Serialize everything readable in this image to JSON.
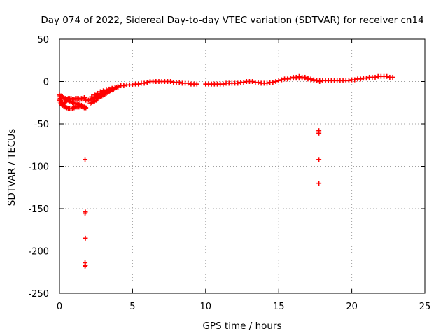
{
  "chart_data": {
    "type": "scatter",
    "title": "Day 074 of 2022, Sidereal Day-to-day VTEC variation (SDTVAR) for receiver cn14",
    "xlabel": "GPS time / hours",
    "ylabel": "SDTVAR / TECUs",
    "xlim": [
      0,
      25
    ],
    "ylim": [
      -250,
      50
    ],
    "xticks": [
      0,
      5,
      10,
      15,
      20,
      25
    ],
    "yticks": [
      -250,
      -200,
      -150,
      -100,
      -50,
      0,
      50
    ],
    "grid": true,
    "marker": "plus",
    "color": "#ff0000",
    "series": [
      {
        "name": "SDTVAR",
        "x": [
          0.0,
          0.05,
          0.1,
          0.15,
          0.2,
          0.25,
          0.3,
          0.35,
          0.4,
          0.5,
          0.55,
          0.6,
          0.7,
          0.8,
          0.9,
          1.0,
          1.1,
          1.2,
          1.3,
          1.4,
          1.5,
          1.6,
          1.7,
          0.0,
          0.05,
          0.1,
          0.15,
          0.2,
          0.3,
          0.4,
          0.5,
          0.6,
          0.7,
          0.8,
          0.9,
          1.0,
          1.1,
          1.2,
          1.3,
          1.4,
          1.5,
          1.6,
          1.7,
          1.8,
          0.0,
          0.1,
          0.2,
          0.3,
          0.4,
          0.5,
          0.6,
          0.7,
          0.8,
          0.9,
          1.0,
          1.1,
          1.2,
          1.3,
          1.4,
          1.5,
          1.6,
          1.7,
          1.8,
          1.8,
          1.9,
          2.0,
          2.1,
          2.2,
          2.3,
          2.4,
          2.5,
          2.6,
          2.7,
          2.8,
          2.9,
          3.0,
          3.1,
          3.2,
          3.3,
          3.4,
          3.5,
          2.1,
          2.2,
          2.3,
          2.4,
          2.5,
          2.6,
          2.7,
          2.8,
          2.9,
          3.0,
          3.1,
          3.2,
          3.3,
          3.4,
          3.5,
          3.6,
          3.7,
          3.8,
          3.9,
          4.0,
          2.2,
          2.4,
          2.6,
          2.8,
          3.0,
          3.2,
          3.4,
          3.6,
          3.8,
          4.0,
          4.2,
          4.4,
          4.6,
          4.8,
          5.0,
          5.2,
          5.4,
          5.6,
          5.8,
          6.0,
          6.2,
          6.4,
          6.6,
          6.8,
          7.0,
          7.2,
          7.4,
          7.6,
          7.8,
          8.0,
          8.2,
          8.4,
          8.6,
          8.8,
          9.0,
          9.2,
          9.4,
          10.0,
          10.2,
          10.4,
          10.6,
          10.8,
          11.0,
          11.2,
          11.4,
          11.6,
          11.8,
          12.0,
          12.2,
          12.4,
          12.6,
          12.8,
          13.0,
          13.2,
          13.4,
          13.6,
          13.8,
          14.0,
          14.2,
          14.4,
          14.6,
          14.8,
          15.0,
          15.2,
          15.4,
          15.6,
          15.8,
          16.0,
          16.2,
          16.4,
          16.6,
          16.8,
          17.0,
          17.2,
          17.4,
          17.6,
          17.8,
          15.8,
          16.0,
          16.2,
          16.4,
          16.6,
          16.8,
          17.0,
          17.2,
          17.4,
          17.6,
          17.8,
          18.0,
          18.2,
          18.4,
          18.6,
          18.8,
          19.0,
          19.2,
          19.4,
          19.6,
          19.8,
          20.0,
          20.2,
          20.4,
          20.6,
          20.8,
          21.0,
          21.2,
          21.4,
          21.6,
          21.8,
          22.0,
          22.2,
          22.4,
          22.6,
          22.8,
          1.75,
          1.77,
          1.75,
          1.77,
          1.75,
          1.77,
          1.75,
          17.75,
          17.75,
          17.75,
          17.75
        ],
        "y": [
          -18,
          -20,
          -22,
          -24,
          -25,
          -26,
          -26,
          -25,
          -24,
          -22,
          -21,
          -20,
          -20,
          -20,
          -21,
          -21,
          -20,
          -20,
          -20,
          -21,
          -20,
          -20,
          -19,
          -22,
          -24,
          -26,
          -27,
          -28,
          -29,
          -30,
          -31,
          -32,
          -32,
          -32,
          -32,
          -31,
          -30,
          -30,
          -30,
          -30,
          -29,
          -30,
          -31,
          -31,
          -16,
          -17,
          -18,
          -19,
          -20,
          -21,
          -22,
          -23,
          -24,
          -25,
          -26,
          -26,
          -26,
          -27,
          -27,
          -28,
          -29,
          -30,
          -31,
          -22,
          -22,
          -22,
          -21,
          -21,
          -20,
          -19,
          -18,
          -17,
          -16,
          -15,
          -14,
          -13,
          -12,
          -12,
          -11,
          -10,
          -10,
          -26,
          -25,
          -24,
          -23,
          -22,
          -20,
          -19,
          -18,
          -17,
          -16,
          -15,
          -14,
          -13,
          -12,
          -11,
          -10,
          -9,
          -8,
          -7,
          -7,
          -18,
          -16,
          -14,
          -12,
          -11,
          -10,
          -9,
          -8,
          -7,
          -6,
          -5,
          -5,
          -4,
          -4,
          -4,
          -3,
          -3,
          -2,
          -2,
          -1,
          0,
          0,
          0,
          0,
          0,
          0,
          0,
          0,
          -1,
          -1,
          -1,
          -2,
          -2,
          -2,
          -3,
          -3,
          -3,
          -3,
          -3,
          -3,
          -3,
          -3,
          -3,
          -3,
          -2,
          -2,
          -2,
          -2,
          -2,
          -1,
          -1,
          0,
          0,
          0,
          -1,
          -1,
          -2,
          -2,
          -2,
          -1,
          -1,
          0,
          1,
          2,
          3,
          3,
          4,
          4,
          4,
          4,
          4,
          4,
          3,
          2,
          1,
          1,
          1,
          4,
          5,
          5,
          6,
          5,
          5,
          4,
          3,
          2,
          1,
          0,
          1,
          1,
          1,
          1,
          1,
          1,
          1,
          1,
          1,
          1,
          2,
          2,
          3,
          3,
          4,
          4,
          5,
          5,
          5,
          6,
          6,
          6,
          6,
          5,
          5,
          -92,
          -154,
          -156,
          -185,
          -214,
          -217,
          -218,
          -58,
          -61,
          -92,
          -120
        ]
      }
    ]
  }
}
